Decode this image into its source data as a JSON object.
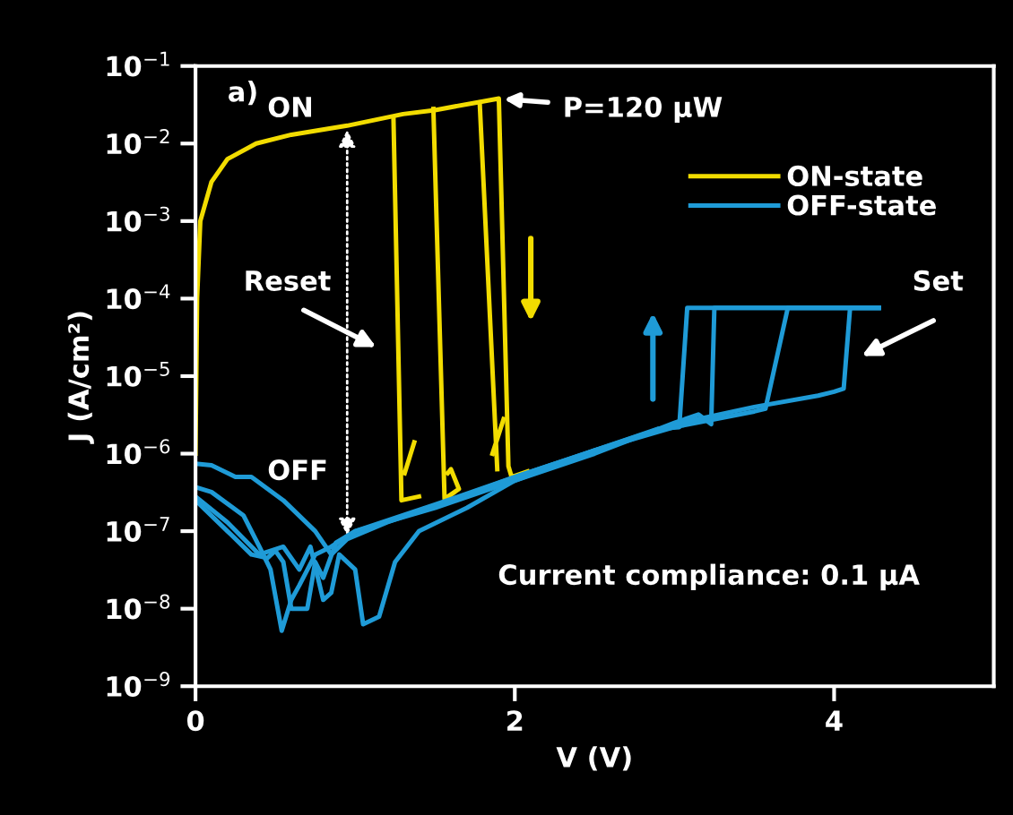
{
  "chart_data": {
    "type": "line",
    "xlabel": "V (V)",
    "ylabel": "J (A/cm²)",
    "log": "y",
    "xlim": [
      0,
      5
    ],
    "xticks": [
      0,
      2,
      4
    ],
    "ylim": [
      1e-09,
      0.1
    ],
    "yticks": [
      {
        "value": 1e-09,
        "label": "10$^{−9}$"
      },
      {
        "value": 1e-08,
        "label": "10$^{−8}$"
      },
      {
        "value": 1e-07,
        "label": "10$^{−7}$"
      },
      {
        "value": 1e-06,
        "label": "10$^{−6}$"
      },
      {
        "value": 1e-05,
        "label": "10$^{−5}$"
      },
      {
        "value": 0.0001,
        "label": "10$^{−4}$"
      },
      {
        "value": 0.001,
        "label": "10$^{−3}$"
      },
      {
        "value": 0.01,
        "label": "10$^{−2}$"
      },
      {
        "value": 0.1,
        "label": "10$^{−1}$"
      }
    ],
    "grid": false,
    "legend": "top right",
    "marker": "none",
    "line_style": "solid",
    "series": [
      {
        "name": "ON-state",
        "color": "#f2dc00",
        "x": [
          0,
          0.01,
          0.03,
          0.1,
          0.2,
          0.38,
          0.6,
          0.95,
          1.3,
          1.5,
          1.8,
          1.9,
          1.96,
          1.98,
          2.08
        ],
        "values": [
          1e-06,
          0.0001,
          0.001,
          0.0032,
          0.0063,
          0.01,
          0.013,
          0.017,
          0.024,
          0.027,
          0.035,
          0.038,
          6.9e-07,
          5e-07,
          5.9e-07
        ]
      },
      {
        "color": "#f2dc00",
        "x": [
          1.24,
          1.29,
          1.4,
          1.35,
          1.31,
          1.37
        ],
        "values": [
          0.021,
          2.5e-07,
          2.8e-07,
          null,
          5.6e-07,
          1.4e-06
        ]
      },
      {
        "color": "#f2dc00",
        "x": [
          1.49,
          1.56,
          1.65,
          1.6,
          1.58
        ],
        "values": [
          0.028,
          2.6e-07,
          3.5e-07,
          6.3e-07,
          5.6e-07
        ]
      },
      {
        "color": "#f2dc00",
        "x": [
          1.78,
          1.89,
          1.88,
          1.86,
          1.93
        ],
        "values": [
          0.034,
          6.3e-07,
          null,
          1e-06,
          2.8e-06
        ]
      },
      {
        "name": "OFF-state",
        "color": "#1f9bd7",
        "x": [
          0,
          0.1,
          0.25,
          0.35,
          0.55,
          0.75,
          0.85,
          0.95,
          1.2,
          1.6,
          2.0,
          2.5,
          2.9,
          3.03,
          3.08,
          4.28
        ],
        "values": [
          7.4e-07,
          7.1e-07,
          5e-07,
          5e-07,
          2.5e-07,
          1e-07,
          5e-08,
          7.9e-08,
          1.3e-07,
          2.5e-07,
          5e-07,
          1.1e-06,
          2.1e-06,
          2.2e-06,
          7.6e-05,
          7.6e-05
        ]
      },
      {
        "color": "#1f9bd7",
        "x": [
          0,
          0.1,
          0.3,
          0.4,
          0.47,
          0.54,
          0.6,
          0.65,
          0.75,
          0.85,
          1.0,
          1.5,
          2.0,
          2.5,
          3.0,
          3.15,
          3.23,
          3.25,
          4.28
        ],
        "values": [
          3.7e-07,
          3.2e-07,
          1.6e-07,
          6.3e-08,
          3.2e-08,
          5.2e-09,
          1.3e-08,
          2e-08,
          5e-08,
          6.3e-08,
          1e-07,
          2e-07,
          4.5e-07,
          1e-06,
          2.5e-06,
          3.2e-06,
          2.4e-06,
          7.6e-05,
          7.6e-05
        ]
      },
      {
        "color": "#1f9bd7",
        "x": [
          0,
          0.2,
          0.35,
          0.45,
          0.5,
          0.55,
          0.6,
          0.7,
          0.75,
          0.8,
          0.88,
          1.0,
          1.5,
          2.0,
          2.5,
          3.0,
          3.5,
          3.57,
          3.71,
          4.28
        ],
        "values": [
          2.5e-07,
          1e-07,
          5e-08,
          4.5e-08,
          5.6e-08,
          4e-08,
          1e-08,
          1e-08,
          4e-08,
          2.5e-08,
          7.1e-08,
          1e-07,
          2.2e-07,
          5e-07,
          1.1e-06,
          2.2e-06,
          3.5e-06,
          3.8e-06,
          7.6e-05,
          7.6e-05
        ]
      },
      {
        "color": "#1f9bd7",
        "x": [
          0,
          0.2,
          0.4,
          0.55,
          0.65,
          0.72,
          0.8,
          0.85,
          0.9,
          1.0,
          1.05,
          1.15,
          1.25,
          1.4,
          1.7,
          2.0,
          2.5,
          3.0,
          3.5,
          3.9,
          4.0,
          4.06,
          4.1,
          4.28
        ],
        "values": [
          2.8e-07,
          1.3e-07,
          5e-08,
          6.3e-08,
          3.2e-08,
          6.3e-08,
          1.3e-08,
          1.6e-08,
          5e-08,
          3.2e-08,
          6.3e-09,
          7.9e-09,
          4e-08,
          1e-07,
          2e-07,
          4.5e-07,
          1.1e-06,
          2.4e-06,
          4e-06,
          5.6e-06,
          6.3e-06,
          6.9e-06,
          7.6e-05,
          7.6e-05
        ]
      }
    ],
    "annotations": [
      "a)",
      "ON",
      "OFF",
      "Reset",
      "Set",
      {
        "text": "P=120 µW",
        "x": 1.9,
        "y": 0.038
      },
      "Current compliance: 0.1 µA"
    ]
  }
}
